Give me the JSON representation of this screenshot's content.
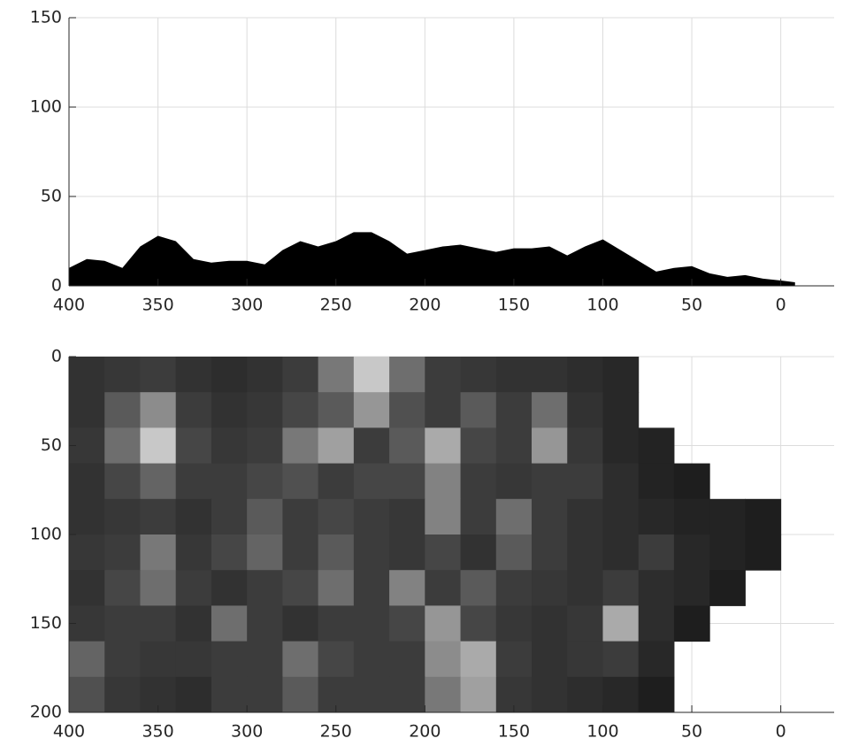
{
  "chart_data": [
    {
      "type": "area",
      "color": "#000000",
      "grid": true,
      "x": [
        400,
        390,
        380,
        370,
        360,
        350,
        340,
        330,
        320,
        310,
        300,
        290,
        280,
        270,
        260,
        250,
        240,
        230,
        220,
        210,
        200,
        190,
        180,
        170,
        160,
        150,
        140,
        130,
        120,
        110,
        100,
        90,
        80,
        70,
        60,
        50,
        40,
        30,
        20,
        10,
        0,
        -8
      ],
      "values": [
        10,
        15,
        14,
        10,
        22,
        28,
        25,
        15,
        13,
        14,
        14,
        12,
        20,
        25,
        22,
        25,
        30,
        30,
        25,
        18,
        20,
        22,
        23,
        21,
        19,
        21,
        21,
        22,
        17,
        22,
        26,
        20,
        14,
        8,
        10,
        11,
        7,
        5,
        6,
        4,
        3,
        2
      ],
      "xlim": [
        400,
        -30
      ],
      "ylim": [
        0,
        150
      ],
      "xticks": [
        400,
        350,
        300,
        250,
        200,
        150,
        100,
        50,
        0
      ],
      "yticks": [
        0,
        50,
        100,
        150
      ]
    },
    {
      "type": "heatmap",
      "grid": true,
      "x": [
        390,
        370,
        350,
        330,
        310,
        290,
        270,
        250,
        230,
        210,
        190,
        170,
        150,
        130,
        110,
        90,
        70,
        50,
        30,
        10
      ],
      "y": [
        10,
        30,
        50,
        70,
        90,
        110,
        130,
        150,
        170,
        190
      ],
      "values": [
        [
          50,
          55,
          60,
          50,
          45,
          50,
          60,
          120,
          200,
          110,
          60,
          55,
          50,
          50,
          45,
          40,
          null,
          null,
          null,
          null
        ],
        [
          50,
          90,
          140,
          60,
          50,
          55,
          70,
          90,
          150,
          80,
          60,
          90,
          60,
          110,
          50,
          40,
          null,
          null,
          null,
          null
        ],
        [
          55,
          110,
          200,
          70,
          55,
          60,
          120,
          160,
          60,
          90,
          170,
          70,
          60,
          150,
          55,
          40,
          35,
          null,
          null,
          null
        ],
        [
          50,
          70,
          100,
          60,
          60,
          70,
          80,
          60,
          70,
          70,
          130,
          60,
          55,
          60,
          60,
          45,
          35,
          30,
          null,
          null
        ],
        [
          50,
          55,
          60,
          50,
          60,
          90,
          60,
          70,
          60,
          55,
          130,
          60,
          110,
          60,
          50,
          45,
          40,
          35,
          35,
          30
        ],
        [
          55,
          60,
          120,
          55,
          70,
          100,
          60,
          90,
          60,
          55,
          70,
          50,
          90,
          60,
          50,
          45,
          60,
          40,
          35,
          30
        ],
        [
          50,
          70,
          110,
          60,
          50,
          60,
          70,
          110,
          60,
          130,
          60,
          90,
          60,
          55,
          50,
          60,
          45,
          40,
          30,
          null
        ],
        [
          55,
          60,
          60,
          50,
          110,
          60,
          50,
          60,
          60,
          70,
          150,
          70,
          55,
          50,
          55,
          170,
          45,
          30,
          null,
          null
        ],
        [
          100,
          60,
          55,
          55,
          60,
          60,
          110,
          70,
          60,
          60,
          140,
          170,
          60,
          50,
          55,
          60,
          40,
          null,
          null,
          null
        ],
        [
          80,
          55,
          50,
          45,
          60,
          60,
          90,
          60,
          60,
          60,
          120,
          160,
          55,
          50,
          45,
          40,
          30,
          null,
          null,
          null
        ]
      ],
      "xlim": [
        400,
        -30
      ],
      "ylim": [
        200,
        0
      ],
      "xticks": [
        400,
        350,
        300,
        250,
        200,
        150,
        100,
        50,
        0
      ],
      "yticks": [
        0,
        50,
        100,
        150,
        200
      ]
    }
  ]
}
